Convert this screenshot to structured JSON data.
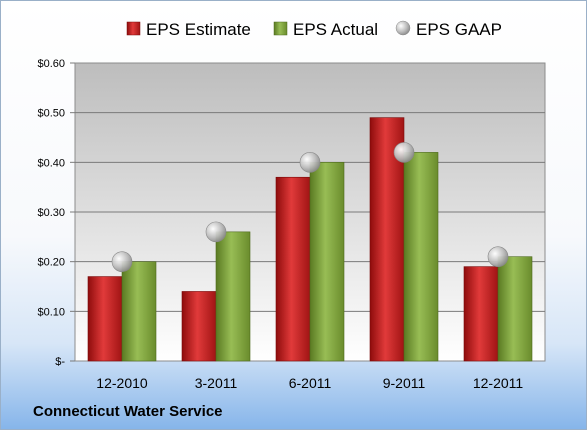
{
  "company": "Connecticut Water Service",
  "colors": {
    "estimate": "#cc1f1f",
    "actual": "#7da13a",
    "gaap": "#b8b8b8"
  },
  "chart_data": {
    "type": "bar",
    "categories": [
      "12-2010",
      "3-2011",
      "6-2011",
      "9-2011",
      "12-2011"
    ],
    "series": [
      {
        "name": "EPS Estimate",
        "values": [
          0.17,
          0.14,
          0.37,
          0.49,
          0.19
        ]
      },
      {
        "name": "EPS Actual",
        "values": [
          0.2,
          0.26,
          0.4,
          0.42,
          0.21
        ]
      },
      {
        "name": "EPS GAAP",
        "type": "scatter",
        "values": [
          0.2,
          0.26,
          0.4,
          0.42,
          0.21
        ]
      }
    ],
    "yticks": [
      "$-",
      "$0.10",
      "$0.20",
      "$0.30",
      "$0.40",
      "$0.50",
      "$0.60"
    ],
    "ylim": [
      0,
      0.6
    ],
    "grid": true,
    "legend": "top"
  }
}
